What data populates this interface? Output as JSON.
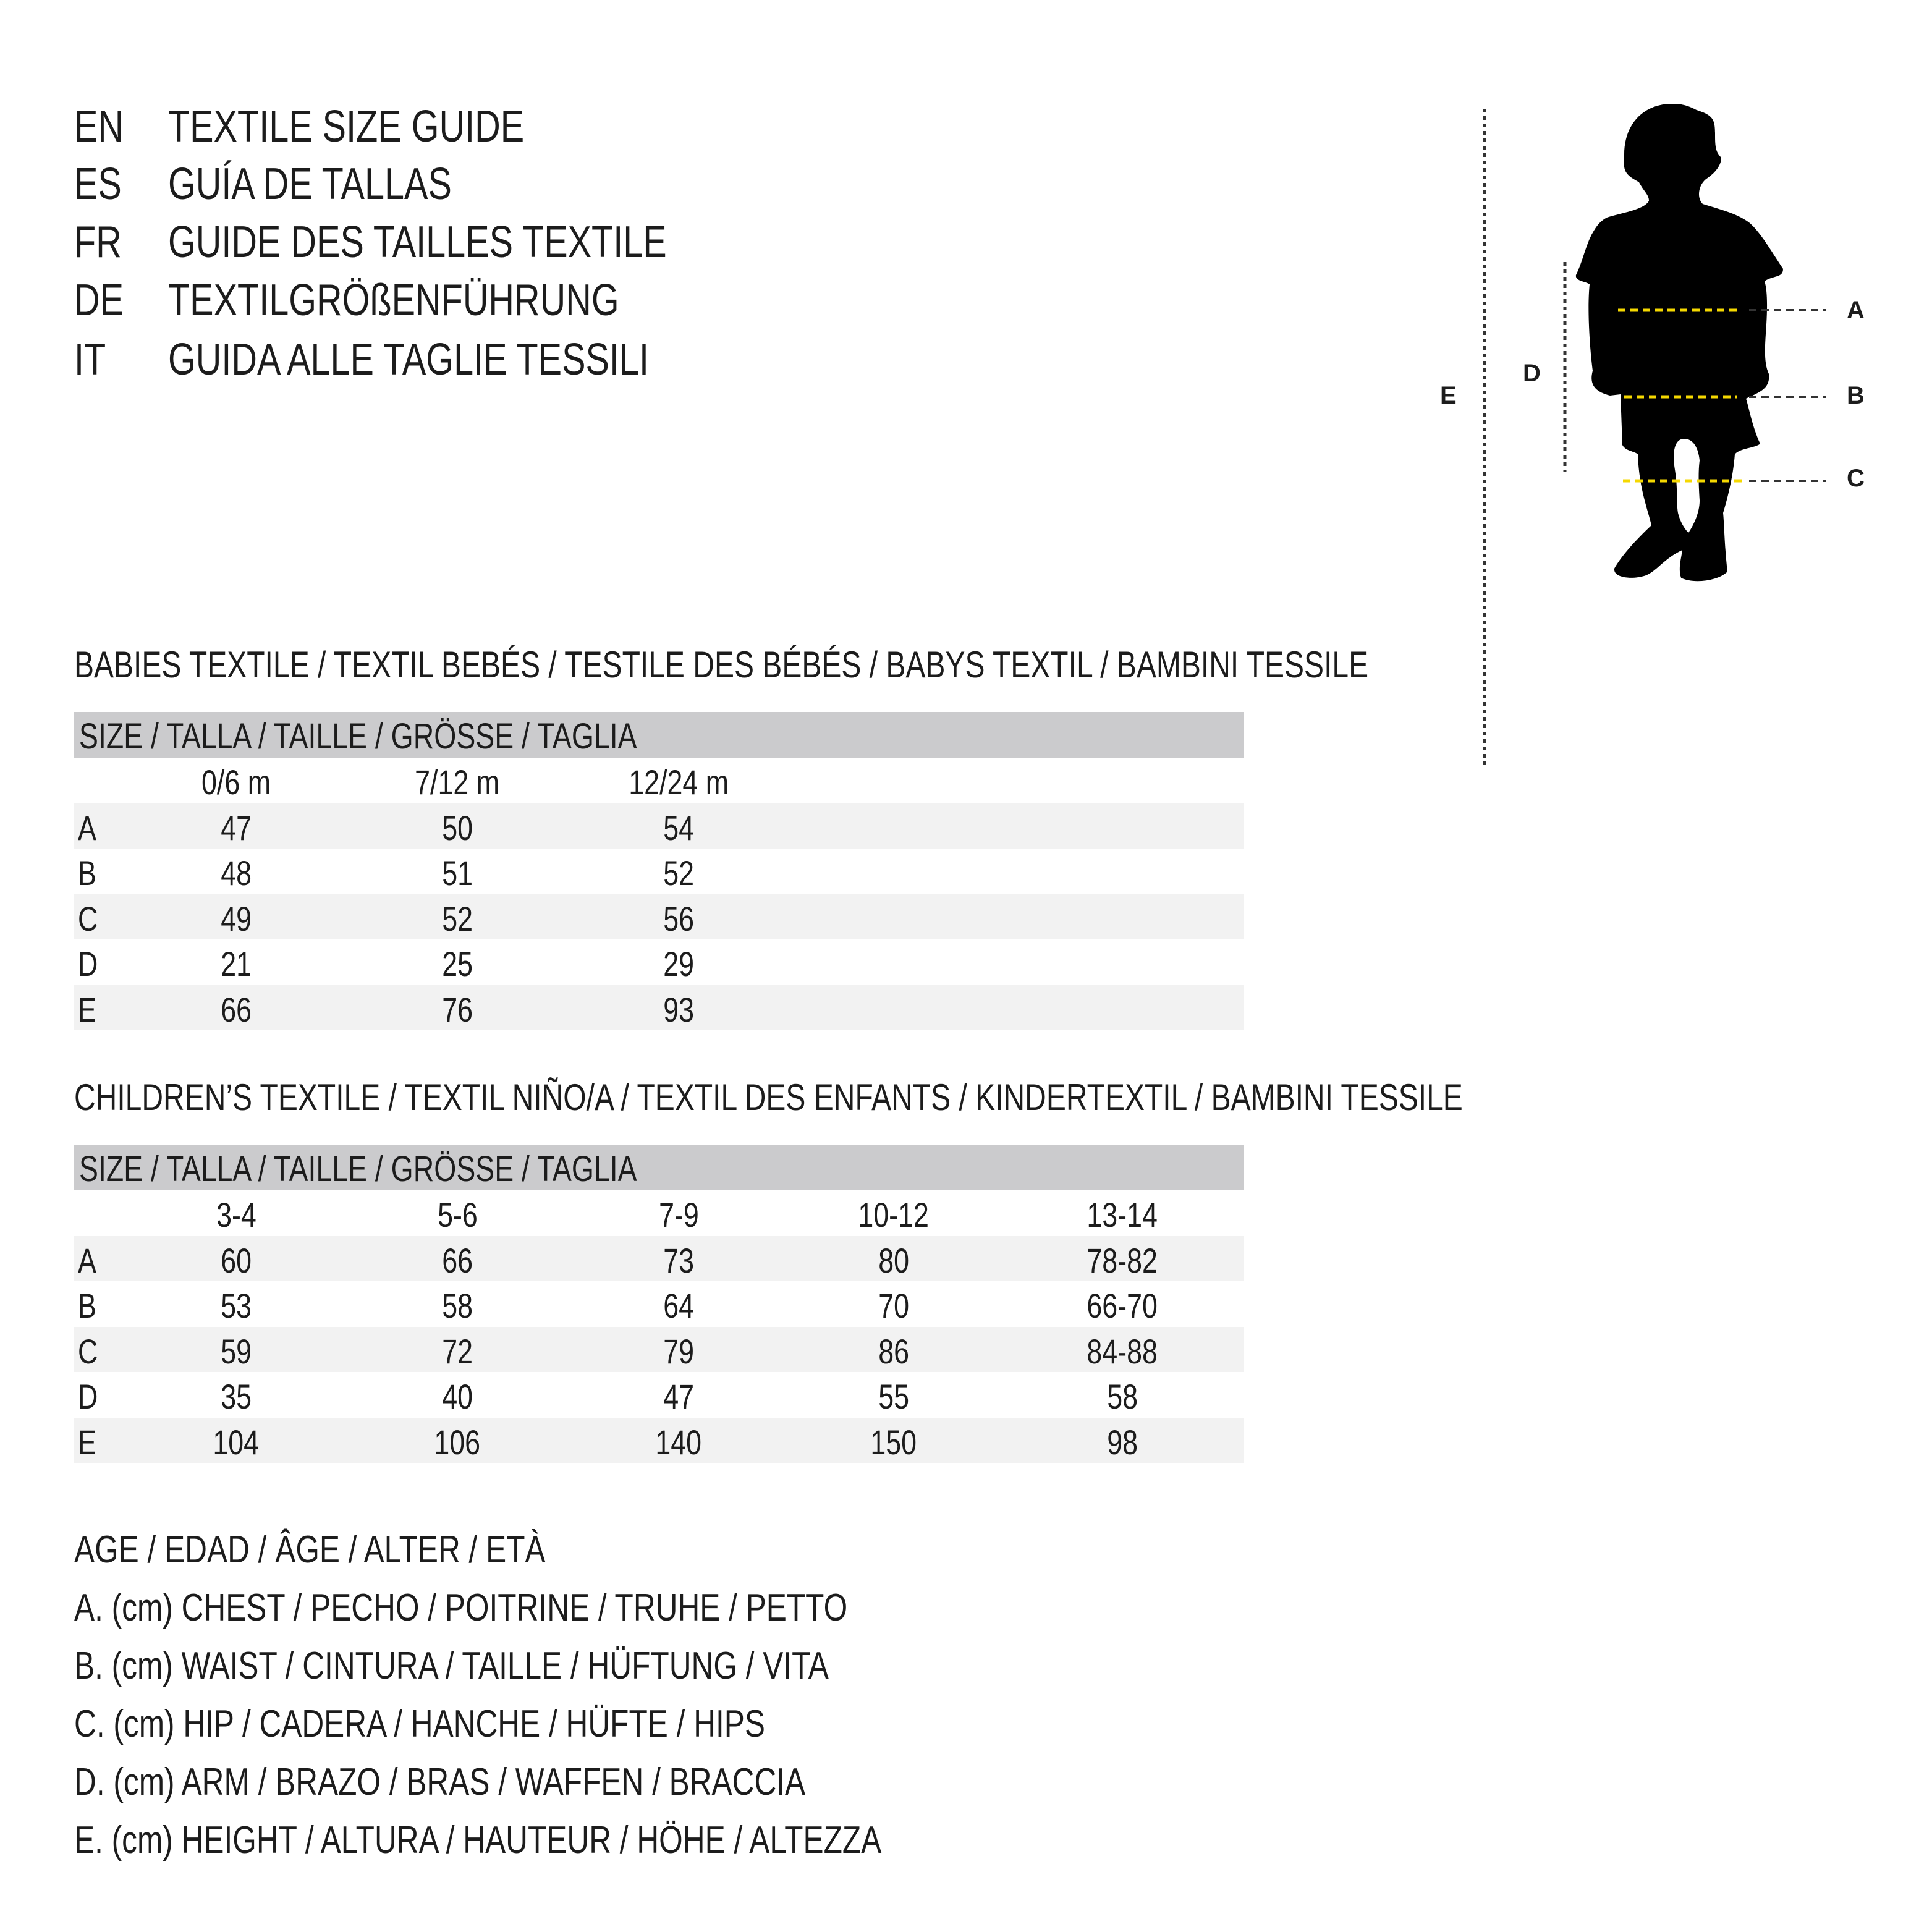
{
  "header": {
    "lines": [
      {
        "code": "EN",
        "text": "TEXTILE SIZE GUIDE"
      },
      {
        "code": "ES",
        "text": "GUÍA DE TALLAS"
      },
      {
        "code": "FR",
        "text": "GUIDE DES TAILLES TEXTILE"
      },
      {
        "code": "DE",
        "text": "TEXTILGRÖßENFÜHRUNG"
      },
      {
        "code": "IT",
        "text": "GUIDA ALLE TAGLIE TESSILI"
      }
    ]
  },
  "babies": {
    "title": "BABIES TEXTILE / TEXTIL BEBÉS / TESTILE DES BÉBÉS / BABYS TEXTIL / BAMBINI TESSILE",
    "size_header": "SIZE / TALLA / TAILLE / GRÖSSE / TAGLIA",
    "columns": [
      "0/6 m",
      "7/12 m",
      "12/24 m"
    ],
    "rows": [
      {
        "label": "A",
        "values": [
          "47",
          "50",
          "54"
        ]
      },
      {
        "label": "B",
        "values": [
          "48",
          "51",
          "52"
        ]
      },
      {
        "label": "C",
        "values": [
          "49",
          "52",
          "56"
        ]
      },
      {
        "label": "D",
        "values": [
          "21",
          "25",
          "29"
        ]
      },
      {
        "label": "E",
        "values": [
          "66",
          "76",
          "93"
        ]
      }
    ]
  },
  "children": {
    "title": "CHILDREN’S TEXTILE / TEXTIL NIÑO/A / TEXTIL DES ENFANTS / KINDERTEXTIL / BAMBINI TESSILE",
    "size_header": "SIZE / TALLA / TAILLE / GRÖSSE / TAGLIA",
    "columns": [
      "3-4",
      "5-6",
      "7-9",
      "10-12",
      "13-14"
    ],
    "rows": [
      {
        "label": "A",
        "values": [
          "60",
          "66",
          "73",
          "80",
          "78-82"
        ]
      },
      {
        "label": "B",
        "values": [
          "53",
          "58",
          "64",
          "70",
          "66-70"
        ]
      },
      {
        "label": "C",
        "values": [
          "59",
          "72",
          "79",
          "86",
          "84-88"
        ]
      },
      {
        "label": "D",
        "values": [
          "35",
          "40",
          "47",
          "55",
          "58"
        ]
      },
      {
        "label": "E",
        "values": [
          "104",
          "106",
          "140",
          "150",
          "98"
        ]
      }
    ]
  },
  "legend": [
    "AGE / EDAD / ÂGE / ALTER / ETÀ",
    "A. (cm) CHEST / PECHO / POITRINE / TRUHE / PETTO",
    "B. (cm) WAIST / CINTURA / TAILLE / HÜFTUNG / VITA",
    "C. (cm) HIP / CADERA / HANCHE / HÜFTE / HIPS",
    "D. (cm) ARM / BRAZO / BRAS / WAFFEN / BRACCIA",
    "E. (cm) HEIGHT / ALTURA / HAUTEUR / HÖHE / ALTEZZA"
  ],
  "figure": {
    "labels": {
      "a": "A",
      "b": "B",
      "c": "C",
      "d": "D",
      "e": "E"
    },
    "colors": {
      "silhouette": "#000000",
      "measure_line": "#f5d800",
      "guide_line": "#333333"
    }
  }
}
